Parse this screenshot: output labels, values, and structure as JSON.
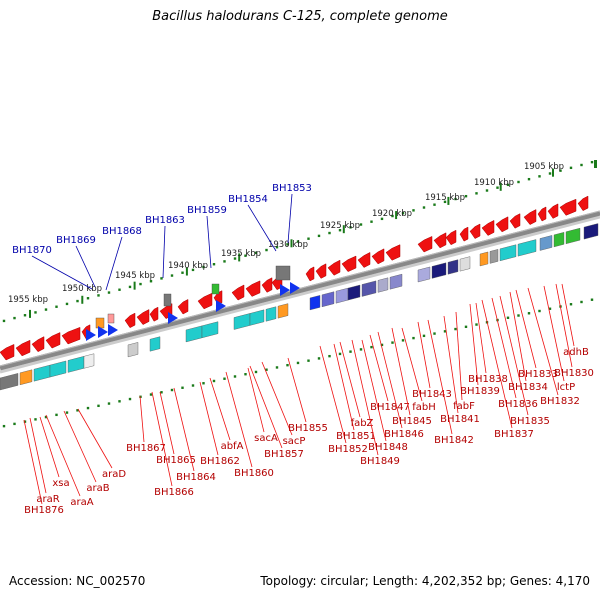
{
  "title": "Bacillus halodurans C-125, complete genome",
  "footer": {
    "accession": "Accession: NC_002570",
    "summary": "Topology: circular; Length: 4,202,352 bp; Genes: 4,170"
  },
  "scale_labels": [
    "1955 kbp",
    "1950 kbp",
    "1945 kbp",
    "1940 kbp",
    "1935 kbp",
    "1930 kbp",
    "1925 kbp",
    "1920 kbp",
    "1915 kbp",
    "1910 kbp",
    "1905 kbp"
  ],
  "upper_genes": [
    "BH1870",
    "BH1869",
    "BH1868",
    "BH1863",
    "BH1859",
    "BH1854",
    "BH1853"
  ],
  "lower_genes": [
    "BH1876",
    "araR",
    "araA",
    "xsa",
    "araB",
    "araD",
    "BH1867",
    "BH1866",
    "BH1865",
    "BH1864",
    "BH1862",
    "abfA",
    "BH1860",
    "sacA",
    "BH1857",
    "sacP",
    "BH1855",
    "BH1852",
    "BH1851",
    "fabZ",
    "BH1849",
    "BH1848",
    "BH1847",
    "BH1846",
    "BH1845",
    "fabH",
    "BH1843",
    "BH1842",
    "BH1841",
    "fabF",
    "BH1839",
    "BH1838",
    "BH1837",
    "BH1836",
    "BH1835",
    "BH1834",
    "BH1833",
    "BH1832",
    "lctP",
    "BH1830",
    "adhB"
  ],
  "colors": {
    "gene_red": "#ee1111",
    "label_blue": "#0000aa",
    "scale_green": "#1a7a1a",
    "backbone": "#888888",
    "cyan": "#22cccc",
    "orange": "#ff9922",
    "navy": "#1a1a7a",
    "green": "#33bb33",
    "blue": "#1133ee"
  }
}
